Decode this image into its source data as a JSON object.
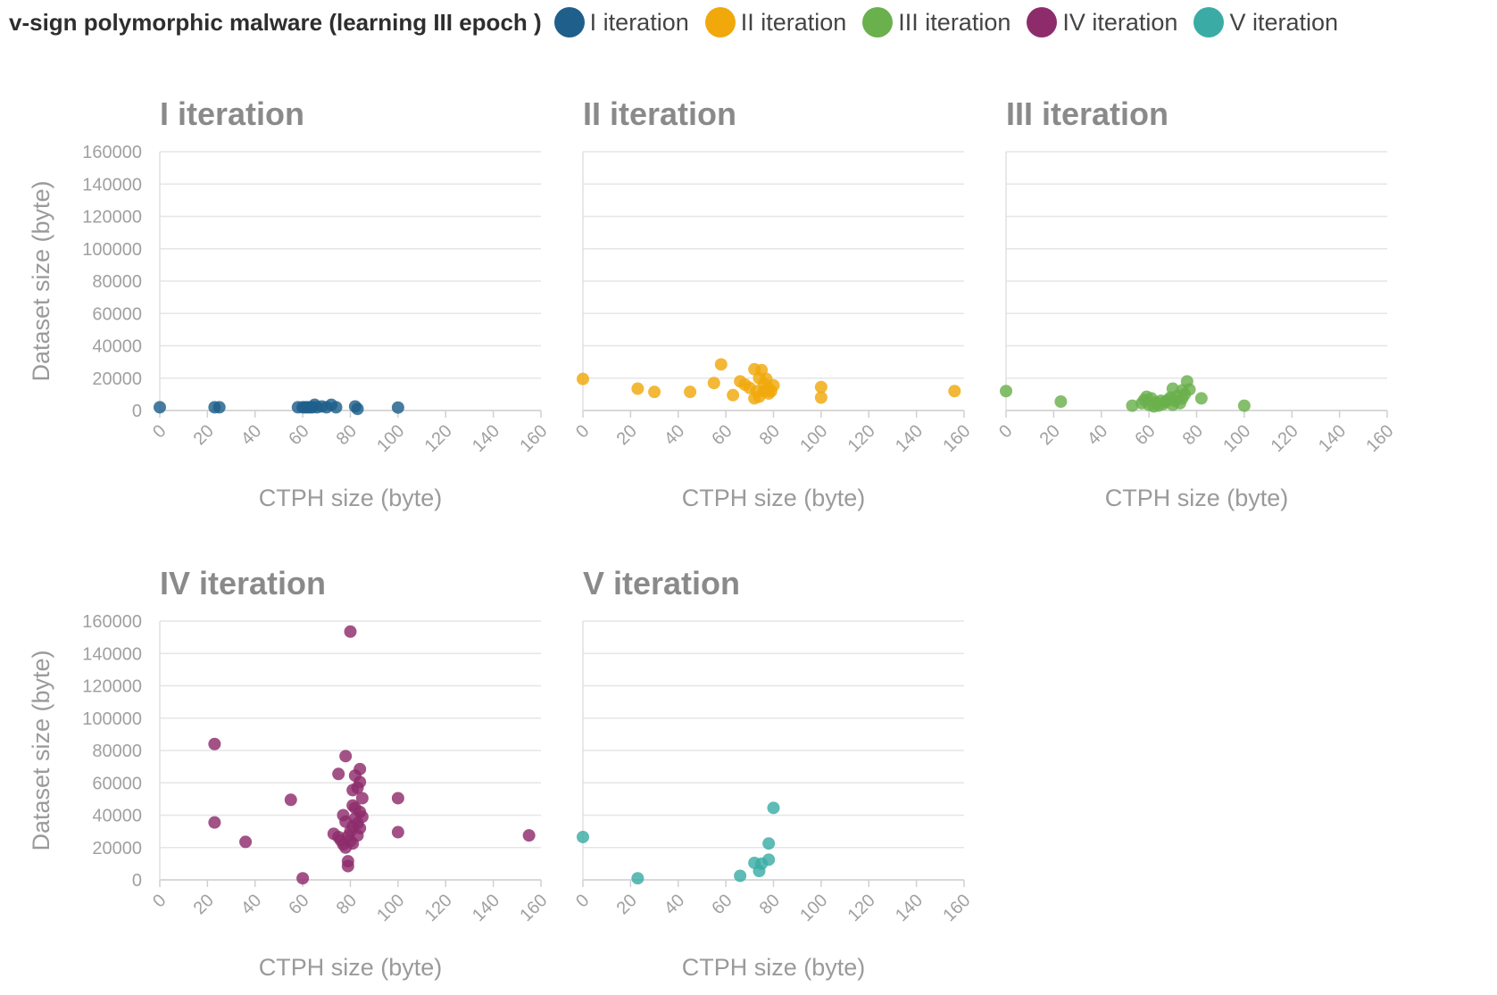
{
  "header": {
    "title": "v-sign polymorphic malware (learning III epoch )"
  },
  "legend": [
    {
      "label": "I iteration",
      "color": "#1f5f8b"
    },
    {
      "label": "II iteration",
      "color": "#f0a80b"
    },
    {
      "label": "III iteration",
      "color": "#6ab04c"
    },
    {
      "label": "IV iteration",
      "color": "#8e2c6b"
    },
    {
      "label": "V iteration",
      "color": "#3aaca5"
    }
  ],
  "chart_data": [
    {
      "type": "scatter",
      "title": "I iteration",
      "xlabel": "CTPH size (byte)",
      "ylabel": "Dataset size (byte)",
      "xlim": [
        0,
        160
      ],
      "ylim": [
        0,
        160000
      ],
      "xticks": [
        "0",
        "20",
        "40",
        "60",
        "80",
        "100",
        "120",
        "140",
        "160"
      ],
      "yticks": [
        "0",
        "20000",
        "40000",
        "60000",
        "80000",
        "100000",
        "120000",
        "140000",
        "160000"
      ],
      "color": "#1f5f8b",
      "points": [
        [
          0,
          2000
        ],
        [
          23,
          2000
        ],
        [
          25,
          2000
        ],
        [
          58,
          2000
        ],
        [
          60,
          2000
        ],
        [
          61,
          2000
        ],
        [
          62,
          2000
        ],
        [
          63,
          2000
        ],
        [
          64,
          2000
        ],
        [
          65,
          3500
        ],
        [
          66,
          2000
        ],
        [
          68,
          2500
        ],
        [
          70,
          2000
        ],
        [
          72,
          3500
        ],
        [
          74,
          2000
        ],
        [
          82,
          2500
        ],
        [
          83,
          1000
        ],
        [
          100,
          1800
        ]
      ]
    },
    {
      "type": "scatter",
      "title": "II iteration",
      "xlabel": "CTPH size (byte)",
      "ylabel": "",
      "xlim": [
        0,
        160
      ],
      "ylim": [
        0,
        160000
      ],
      "xticks": [
        "0",
        "20",
        "40",
        "60",
        "80",
        "100",
        "120",
        "140",
        "160"
      ],
      "yticks": [],
      "color": "#f0a80b",
      "points": [
        [
          0,
          19500
        ],
        [
          23,
          13500
        ],
        [
          30,
          11500
        ],
        [
          45,
          11500
        ],
        [
          55,
          17000
        ],
        [
          58,
          28500
        ],
        [
          63,
          9500
        ],
        [
          66,
          18000
        ],
        [
          68,
          16000
        ],
        [
          70,
          14000
        ],
        [
          72,
          25500
        ],
        [
          72,
          7500
        ],
        [
          73,
          12000
        ],
        [
          74,
          20000
        ],
        [
          74,
          8500
        ],
        [
          75,
          25000
        ],
        [
          76,
          16500
        ],
        [
          76,
          12000
        ],
        [
          77,
          19500
        ],
        [
          78,
          13500
        ],
        [
          78,
          10500
        ],
        [
          79,
          12000
        ],
        [
          80,
          15500
        ],
        [
          100,
          14500
        ],
        [
          100,
          8000
        ],
        [
          156,
          12000
        ]
      ]
    },
    {
      "type": "scatter",
      "title": "III iteration",
      "xlabel": "CTPH size (byte)",
      "ylabel": "",
      "xlim": [
        0,
        160
      ],
      "ylim": [
        0,
        160000
      ],
      "xticks": [
        "0",
        "20",
        "40",
        "60",
        "80",
        "100",
        "120",
        "140",
        "160"
      ],
      "yticks": [],
      "color": "#6ab04c",
      "points": [
        [
          0,
          12000
        ],
        [
          23,
          5500
        ],
        [
          53,
          3000
        ],
        [
          57,
          4500
        ],
        [
          58,
          6500
        ],
        [
          59,
          8500
        ],
        [
          60,
          3500
        ],
        [
          61,
          7500
        ],
        [
          62,
          2500
        ],
        [
          63,
          5000
        ],
        [
          64,
          3000
        ],
        [
          65,
          6000
        ],
        [
          66,
          4000
        ],
        [
          67,
          5500
        ],
        [
          68,
          6500
        ],
        [
          69,
          8000
        ],
        [
          70,
          13500
        ],
        [
          70,
          3500
        ],
        [
          71,
          6000
        ],
        [
          72,
          9000
        ],
        [
          73,
          4500
        ],
        [
          74,
          12500
        ],
        [
          74,
          7500
        ],
        [
          75,
          10000
        ],
        [
          76,
          18000
        ],
        [
          77,
          13000
        ],
        [
          82,
          7500
        ],
        [
          100,
          3000
        ]
      ]
    },
    {
      "type": "scatter",
      "title": "IV iteration",
      "xlabel": "CTPH size (byte)",
      "ylabel": "Dataset size (byte)",
      "xlim": [
        0,
        160
      ],
      "ylim": [
        0,
        160000
      ],
      "xticks": [
        "0",
        "20",
        "40",
        "60",
        "80",
        "100",
        "120",
        "140",
        "160"
      ],
      "yticks": [
        "0",
        "20000",
        "40000",
        "60000",
        "80000",
        "100000",
        "120000",
        "140000",
        "160000"
      ],
      "color": "#8e2c6b",
      "points": [
        [
          23,
          84000
        ],
        [
          23,
          35500
        ],
        [
          36,
          23500
        ],
        [
          55,
          49500
        ],
        [
          60,
          1000
        ],
        [
          73,
          28500
        ],
        [
          75,
          26500
        ],
        [
          75,
          65500
        ],
        [
          76,
          24500
        ],
        [
          77,
          40000
        ],
        [
          77,
          22000
        ],
        [
          78,
          76500
        ],
        [
          78,
          36000
        ],
        [
          78,
          20000
        ],
        [
          79,
          27000
        ],
        [
          79,
          11500
        ],
        [
          79,
          8500
        ],
        [
          80,
          153500
        ],
        [
          80,
          30000
        ],
        [
          80,
          24000
        ],
        [
          81,
          46000
        ],
        [
          81,
          33000
        ],
        [
          81,
          55500
        ],
        [
          81,
          22500
        ],
        [
          82,
          44500
        ],
        [
          82,
          64500
        ],
        [
          82,
          38000
        ],
        [
          83,
          35000
        ],
        [
          83,
          27500
        ],
        [
          83,
          57000
        ],
        [
          84,
          68500
        ],
        [
          84,
          60500
        ],
        [
          84,
          42000
        ],
        [
          84,
          32000
        ],
        [
          85,
          50500
        ],
        [
          85,
          39000
        ],
        [
          100,
          50500
        ],
        [
          100,
          29500
        ],
        [
          155,
          27500
        ]
      ]
    },
    {
      "type": "scatter",
      "title": "V iteration",
      "xlabel": "CTPH size (byte)",
      "ylabel": "",
      "xlim": [
        0,
        160
      ],
      "ylim": [
        0,
        160000
      ],
      "xticks": [
        "0",
        "20",
        "40",
        "60",
        "80",
        "100",
        "120",
        "140",
        "160"
      ],
      "yticks": [],
      "color": "#3aaca5",
      "points": [
        [
          0,
          26500
        ],
        [
          23,
          1000
        ],
        [
          66,
          2500
        ],
        [
          72,
          10500
        ],
        [
          74,
          5500
        ],
        [
          75,
          10000
        ],
        [
          78,
          12500
        ],
        [
          78,
          22500
        ],
        [
          80,
          44500
        ]
      ]
    }
  ]
}
